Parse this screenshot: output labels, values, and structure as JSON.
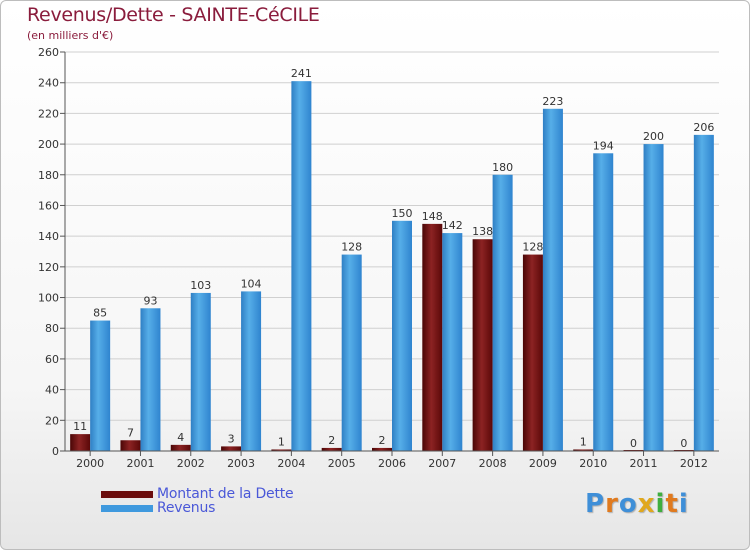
{
  "title": "Revenus/Dette - SAINTE-CéCILE",
  "subtitle": "(en milliers d'€)",
  "colors": {
    "debt": "#6b0d0d",
    "revenue": "#3f99de",
    "grid": "#d0d0d0",
    "axis": "#555555"
  },
  "legend": [
    {
      "label": "Montant de la Dette",
      "color": "#6b0d0d"
    },
    {
      "label": "Revenus",
      "color": "#3f99de"
    }
  ],
  "logo": {
    "text": "Proxiti"
  },
  "chart_data": {
    "type": "bar",
    "title": "Revenus/Dette - SAINTE-CéCILE",
    "ylabel": "(en milliers d'€)",
    "xlabel": "",
    "ylim": [
      0,
      260
    ],
    "ytick_step": 20,
    "grid": true,
    "legend_position": "bottom-left",
    "categories": [
      "2000",
      "2001",
      "2002",
      "2003",
      "2004",
      "2005",
      "2006",
      "2007",
      "2008",
      "2009",
      "2010",
      "2011",
      "2012"
    ],
    "series": [
      {
        "name": "Montant de la Dette",
        "values": [
          11,
          7,
          4,
          3,
          1,
          2,
          2,
          148,
          138,
          128,
          1,
          0,
          0
        ]
      },
      {
        "name": "Revenus",
        "values": [
          85,
          93,
          103,
          104,
          241,
          128,
          150,
          142,
          180,
          223,
          194,
          200,
          206
        ]
      }
    ]
  }
}
